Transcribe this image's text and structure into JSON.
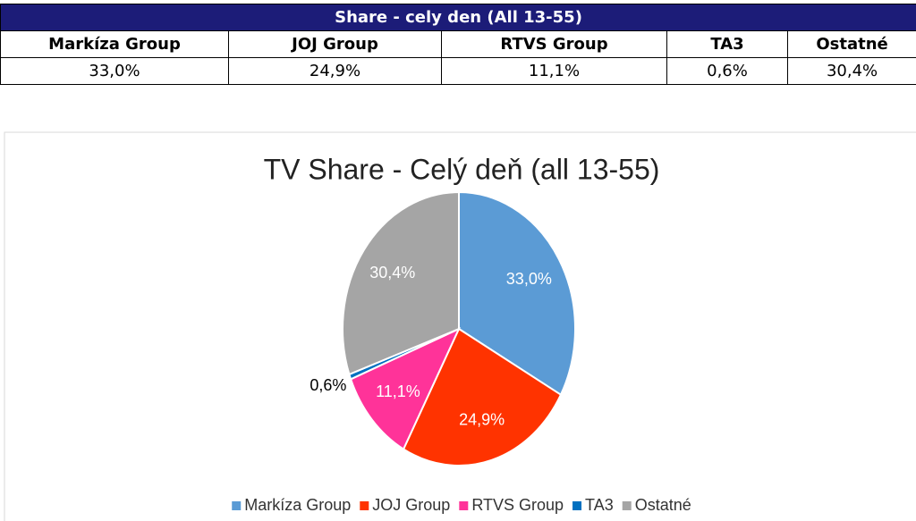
{
  "table": {
    "title": "Share - cely den (All 13-55)",
    "header": [
      "Markíza Group",
      "JOJ Group",
      "RTVS Group",
      "TA3",
      "Ostatné"
    ],
    "rows": [
      [
        "33,0%",
        "24,9%",
        "11,1%",
        "0,6%",
        "30,4%"
      ]
    ]
  },
  "chart_data": {
    "type": "pie",
    "title": "TV Share - Celý deň (all 13-55)",
    "categories": [
      "Markíza Group",
      "JOJ Group",
      "RTVS Group",
      "TA3",
      "Ostatné"
    ],
    "values": [
      33.0,
      24.9,
      11.1,
      0.6,
      30.4
    ],
    "value_labels": [
      "33,0%",
      "24,9%",
      "11,1%",
      "0,6%",
      "30,4%"
    ],
    "colors": [
      "#5b9bd5",
      "#ff3300",
      "#ff3399",
      "#0070c0",
      "#a5a5a5"
    ],
    "legend": "bottom"
  }
}
